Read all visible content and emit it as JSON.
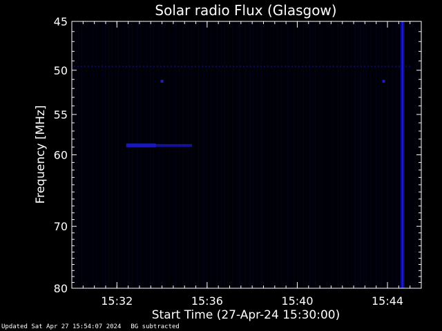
{
  "chart_data": {
    "type": "heatmap",
    "title": "Solar radio Flux (Glasgow)",
    "xlabel": "Start Time (27-Apr-24 15:30:00)",
    "ylabel": "Frequency [MHz]",
    "x_range_minutes": [
      "15:30:00",
      "15:45:30"
    ],
    "y_range_mhz": [
      45,
      80
    ],
    "y_ticks": [
      45,
      50,
      55,
      60,
      70,
      80
    ],
    "y_tick_labels": [
      "45",
      "50",
      "55",
      "60",
      "70",
      "80"
    ],
    "x_ticks": [
      "15:32",
      "15:36",
      "15:40",
      "15:44"
    ],
    "x_tick_labels": [
      "15:32",
      "15:36",
      "15:40",
      "15:44"
    ],
    "background_color": "#000000",
    "colormap": "black-blue",
    "features": [
      {
        "kind": "burst",
        "start": "15:32:25",
        "end": "15:35:20",
        "freq_mhz": 58.8
      },
      {
        "kind": "interference",
        "start": "15:30:00",
        "end": "15:45:00",
        "freq_mhz": 49.6
      },
      {
        "kind": "blip",
        "time": "15:34:00",
        "freq_mhz": 51.2
      },
      {
        "kind": "blip",
        "time": "15:43:50",
        "freq_mhz": 51.2
      },
      {
        "kind": "broadband",
        "time": "15:44:40",
        "freq_range_mhz": [
          45,
          80
        ]
      }
    ]
  },
  "footer": {
    "updated": "Updated Sat Apr 27 15:54:07 2024",
    "note": "BG subtracted"
  }
}
